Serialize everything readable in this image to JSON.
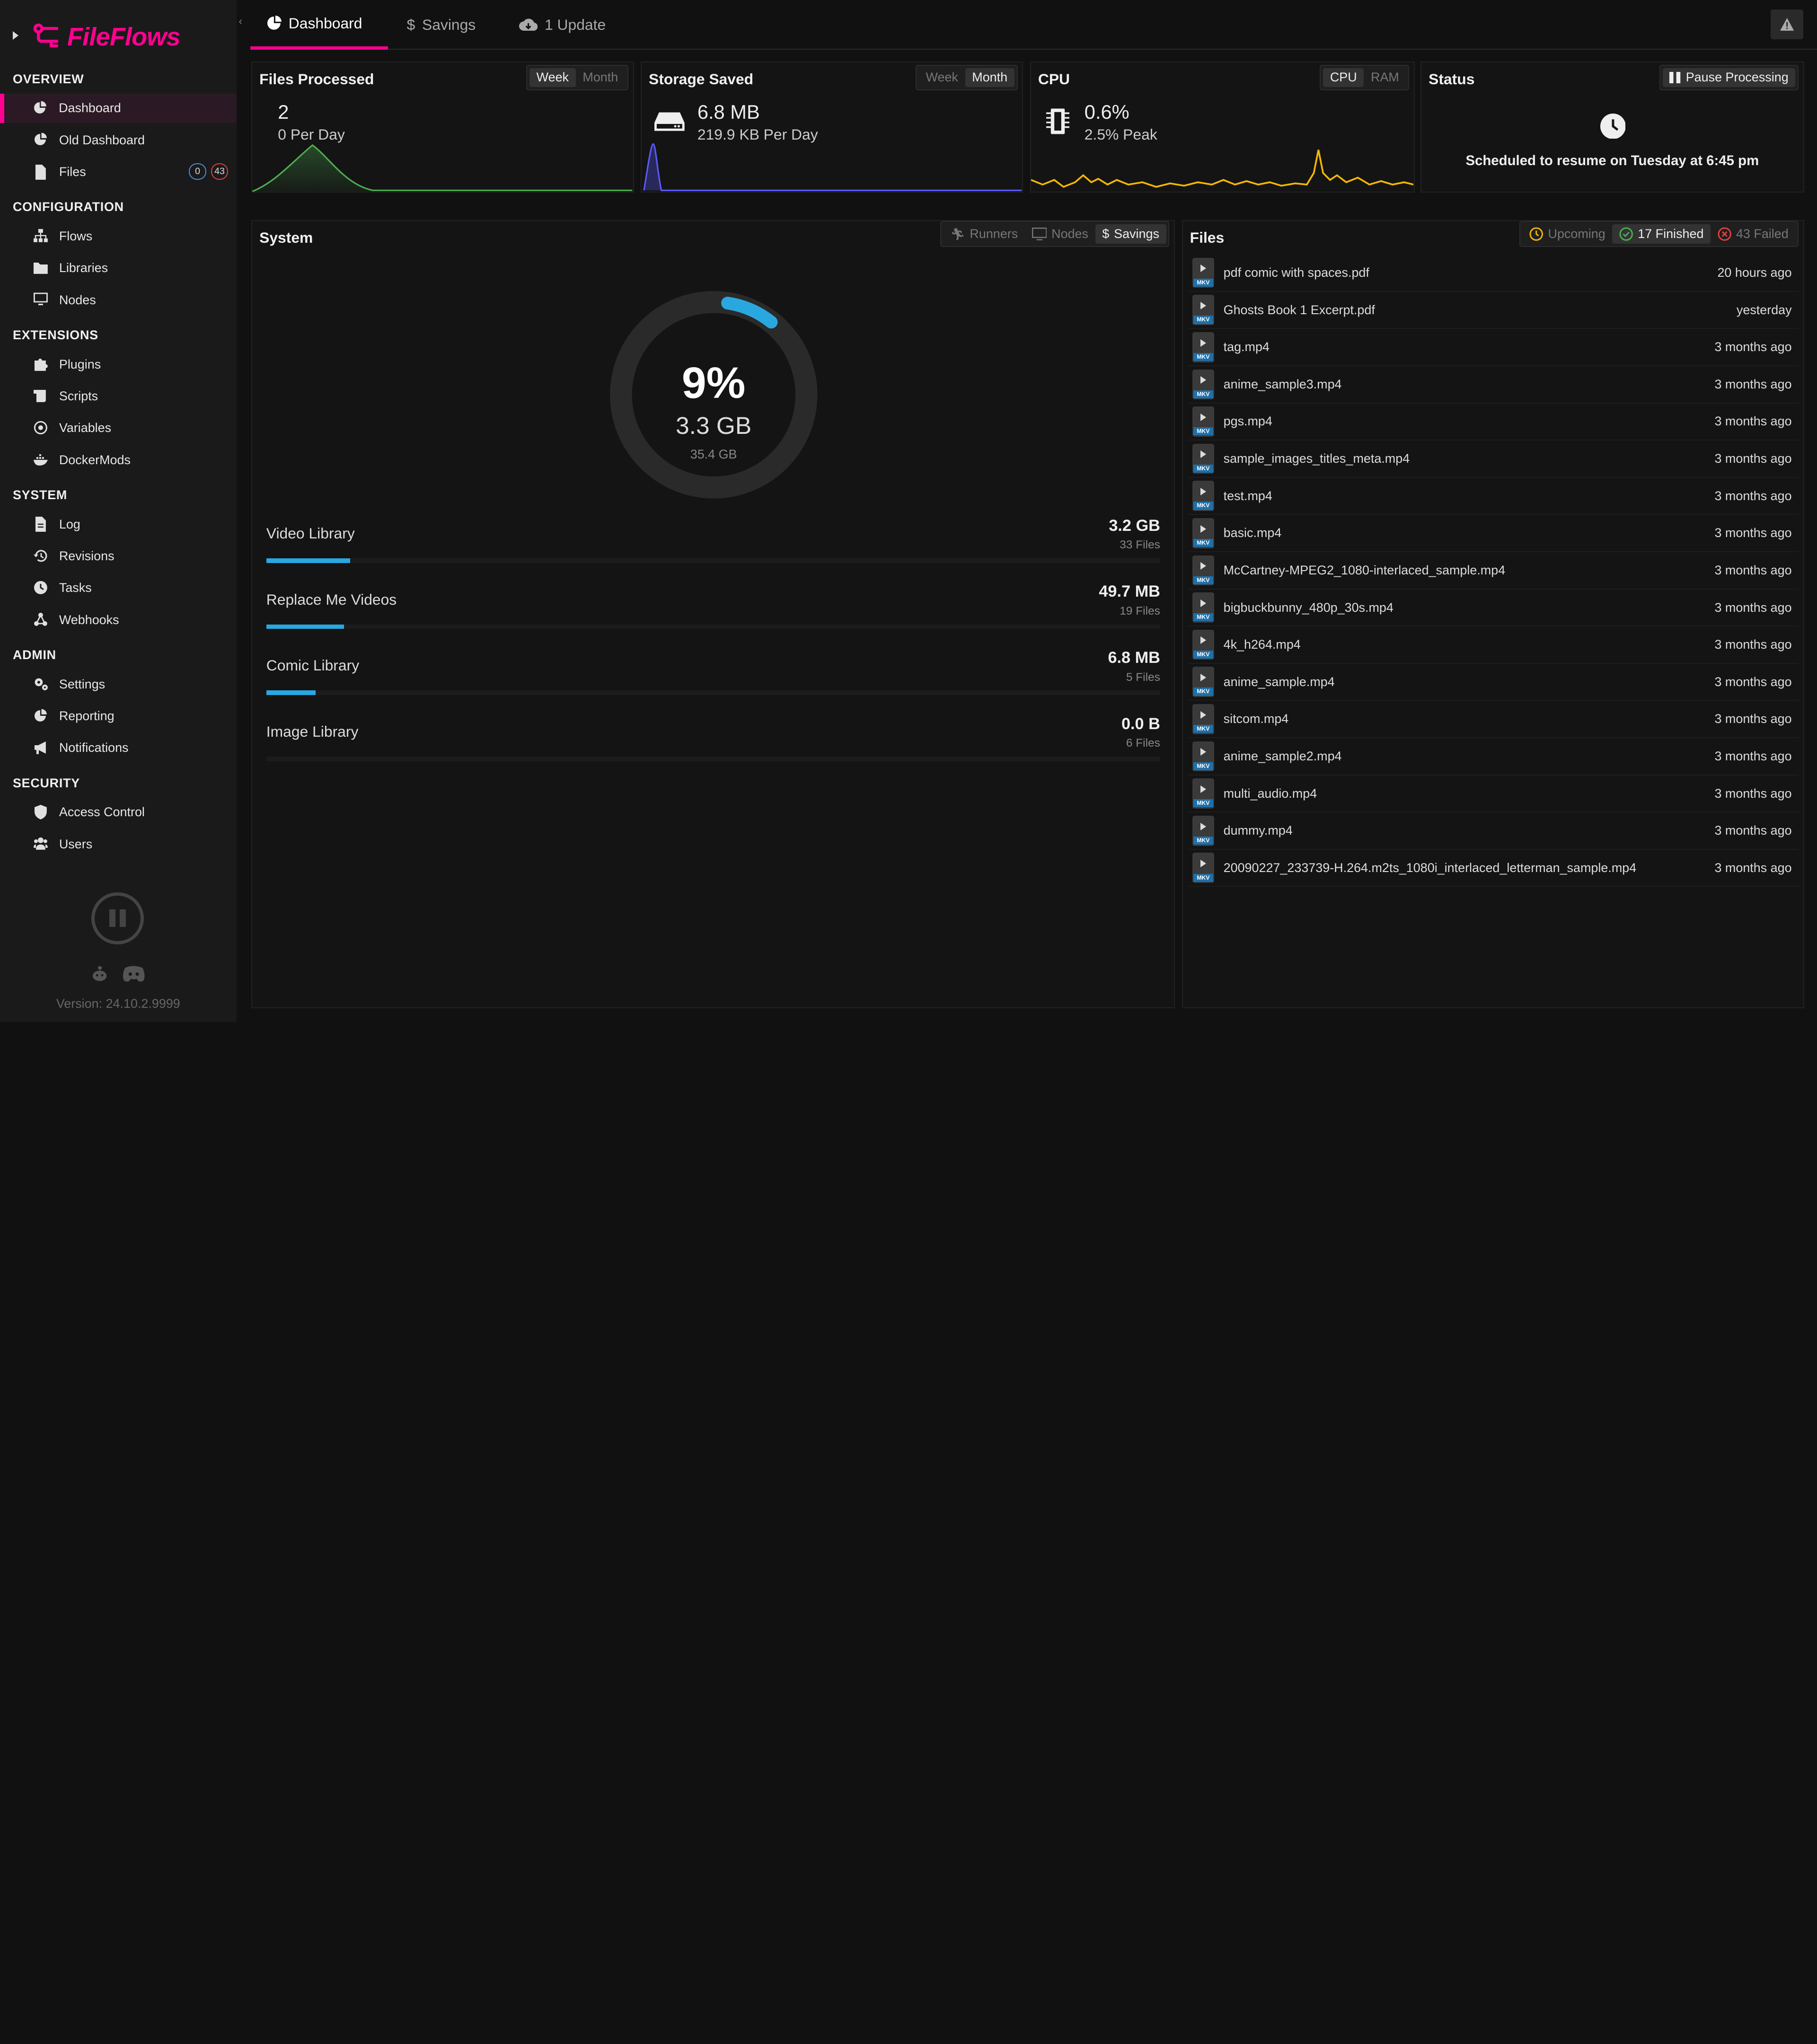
{
  "app": {
    "name": "FileFlows",
    "version": "Version: 24.10.2.9999"
  },
  "colors": {
    "accent": "#ff0090",
    "bar": "#29a8e0",
    "green": "#4caf50",
    "blue": "#5a5aff",
    "yellow": "#f5b800"
  },
  "sidebar": {
    "sections": [
      {
        "title": "OVERVIEW",
        "items": [
          {
            "label": "Dashboard",
            "icon": "pie-chart-icon",
            "active": true
          },
          {
            "label": "Old Dashboard",
            "icon": "pie-chart-icon"
          },
          {
            "label": "Files",
            "icon": "file-icon",
            "badges": [
              "0",
              "43"
            ]
          }
        ]
      },
      {
        "title": "CONFIGURATION",
        "items": [
          {
            "label": "Flows",
            "icon": "sitemap-icon"
          },
          {
            "label": "Libraries",
            "icon": "folder-icon"
          },
          {
            "label": "Nodes",
            "icon": "desktop-icon"
          }
        ]
      },
      {
        "title": "EXTENSIONS",
        "items": [
          {
            "label": "Plugins",
            "icon": "puzzle-icon"
          },
          {
            "label": "Scripts",
            "icon": "scroll-icon"
          },
          {
            "label": "Variables",
            "icon": "at-icon"
          },
          {
            "label": "DockerMods",
            "icon": "docker-icon"
          }
        ]
      },
      {
        "title": "SYSTEM",
        "items": [
          {
            "label": "Log",
            "icon": "file-lines-icon"
          },
          {
            "label": "Revisions",
            "icon": "history-icon"
          },
          {
            "label": "Tasks",
            "icon": "clock-icon"
          },
          {
            "label": "Webhooks",
            "icon": "webhook-icon"
          }
        ]
      },
      {
        "title": "ADMIN",
        "items": [
          {
            "label": "Settings",
            "icon": "gears-icon"
          },
          {
            "label": "Reporting",
            "icon": "pie-chart-icon"
          },
          {
            "label": "Notifications",
            "icon": "bullhorn-icon"
          }
        ]
      },
      {
        "title": "SECURITY",
        "items": [
          {
            "label": "Access Control",
            "icon": "shield-icon"
          },
          {
            "label": "Users",
            "icon": "users-icon"
          }
        ]
      }
    ]
  },
  "topbar": {
    "tabs": [
      {
        "label": "Dashboard",
        "icon": "pie-chart-icon",
        "active": true
      },
      {
        "label": "Savings",
        "icon": "dollar-icon"
      },
      {
        "label": "1 Update",
        "icon": "cloud-download-icon"
      }
    ]
  },
  "files_processed": {
    "title": "Files Processed",
    "week": "Week",
    "month": "Month",
    "count": "2",
    "per_day": "0 Per Day"
  },
  "storage_saved": {
    "title": "Storage Saved",
    "week": "Week",
    "month": "Month",
    "amount": "6.8 MB",
    "per_day": "219.9 KB Per Day"
  },
  "cpu": {
    "title": "CPU",
    "cpu_btn": "CPU",
    "ram_btn": "RAM",
    "value": "0.6%",
    "peak": "2.5% Peak"
  },
  "status": {
    "title": "Status",
    "pause_btn": "Pause Processing",
    "message": "Scheduled to resume on Tuesday at 6:45 pm"
  },
  "system": {
    "title": "System",
    "tabs": [
      "Runners",
      "Nodes",
      "Savings"
    ],
    "percent": "9%",
    "saved": "3.3 GB",
    "total": "35.4 GB",
    "percent_value": 0.09,
    "libraries": [
      {
        "name": "Video Library",
        "size": "3.2 GB",
        "files": "33 Files",
        "fraction": 0.094
      },
      {
        "name": "Replace Me Videos",
        "size": "49.7 MB",
        "files": "19 Files",
        "fraction": 0.087
      },
      {
        "name": "Comic Library",
        "size": "6.8 MB",
        "files": "5 Files",
        "fraction": 0.055
      },
      {
        "name": "Image Library",
        "size": "0.0 B",
        "files": "6 Files",
        "fraction": 0
      }
    ]
  },
  "files": {
    "title": "Files",
    "upcoming": "Upcoming",
    "finished": "17 Finished",
    "failed": "43 Failed",
    "rows": [
      {
        "name": "pdf comic with spaces.pdf",
        "when": "20 hours ago"
      },
      {
        "name": "Ghosts Book 1 Excerpt.pdf",
        "when": "yesterday"
      },
      {
        "name": "tag.mp4",
        "when": "3 months ago"
      },
      {
        "name": "anime_sample3.mp4",
        "when": "3 months ago"
      },
      {
        "name": "pgs.mp4",
        "when": "3 months ago"
      },
      {
        "name": "sample_images_titles_meta.mp4",
        "when": "3 months ago"
      },
      {
        "name": "test.mp4",
        "when": "3 months ago"
      },
      {
        "name": "basic.mp4",
        "when": "3 months ago"
      },
      {
        "name": "McCartney-MPEG2_1080-interlaced_sample.mp4",
        "when": "3 months ago"
      },
      {
        "name": "bigbuckbunny_480p_30s.mp4",
        "when": "3 months ago"
      },
      {
        "name": "4k_h264.mp4",
        "when": "3 months ago"
      },
      {
        "name": "anime_sample.mp4",
        "when": "3 months ago"
      },
      {
        "name": "sitcom.mp4",
        "when": "3 months ago"
      },
      {
        "name": "anime_sample2.mp4",
        "when": "3 months ago"
      },
      {
        "name": "multi_audio.mp4",
        "when": "3 months ago"
      },
      {
        "name": "dummy.mp4",
        "when": "3 months ago"
      },
      {
        "name": "20090227_233739-H.264.m2ts_1080i_interlaced_letterman_sample.mp4",
        "when": "3 months ago"
      }
    ],
    "badge": "MKV"
  }
}
